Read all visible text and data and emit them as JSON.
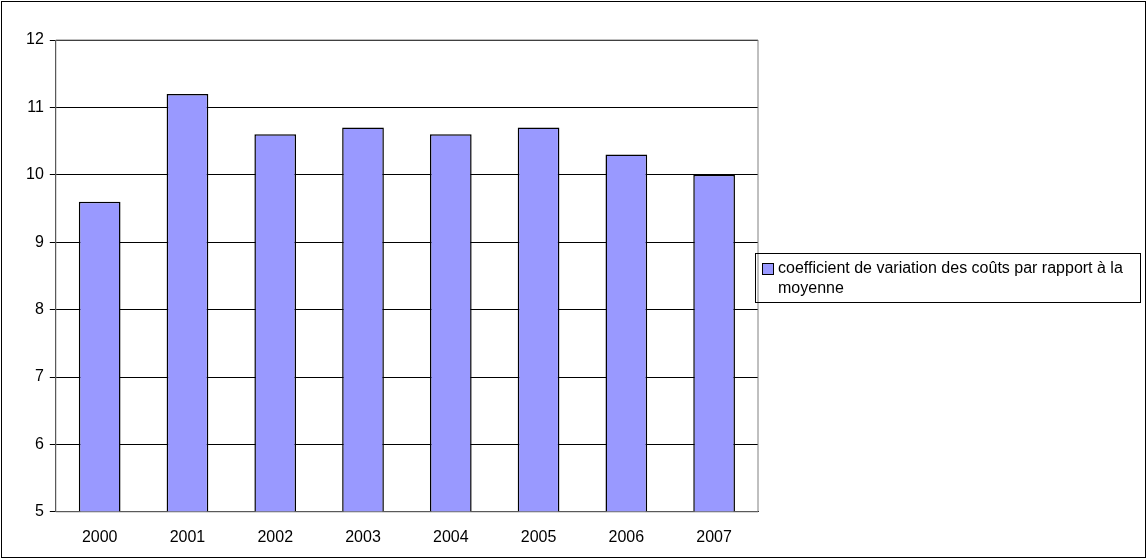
{
  "chart_data": {
    "type": "bar",
    "categories": [
      "2000",
      "2001",
      "2002",
      "2003",
      "2004",
      "2005",
      "2006",
      "2007"
    ],
    "series": [
      {
        "name": "coefficient de variation des coûts par rapport à la moyenne",
        "color": "#9999ff",
        "values": [
          9.6,
          11.2,
          10.6,
          10.7,
          10.6,
          10.7,
          10.3,
          10.0
        ]
      }
    ],
    "ylim": [
      5,
      12
    ],
    "yticks": [
      5,
      6,
      7,
      8,
      9,
      10,
      11,
      12
    ],
    "grid": "y",
    "legend": "right"
  }
}
